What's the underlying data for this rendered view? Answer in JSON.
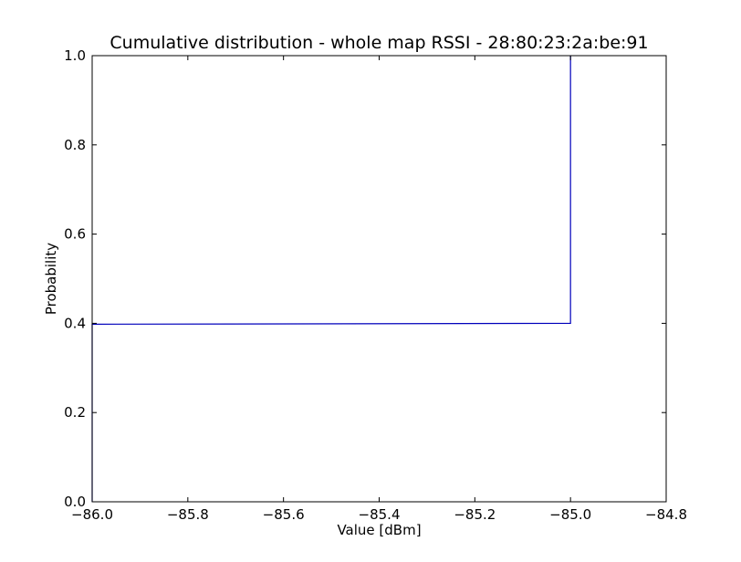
{
  "chart_data": {
    "type": "line",
    "title": "Cumulative distribution - whole map RSSI - 28:80:23:2a:be:91",
    "xlabel": "Value [dBm]",
    "ylabel": "Probability",
    "xlim": [
      -86.0,
      -84.8
    ],
    "ylim": [
      0.0,
      1.0
    ],
    "xticks": [
      -86.0,
      -85.8,
      -85.6,
      -85.4,
      -85.2,
      -85.0,
      -84.8
    ],
    "xtick_labels": [
      "−86.0",
      "−85.8",
      "−85.6",
      "−85.4",
      "−85.2",
      "−85.0",
      "−84.8"
    ],
    "yticks": [
      0.0,
      0.2,
      0.4,
      0.6,
      0.8,
      1.0
    ],
    "ytick_labels": [
      "0.0",
      "0.2",
      "0.4",
      "0.6",
      "0.8",
      "1.0"
    ],
    "grid": false,
    "series": [
      {
        "color": "#0000bb",
        "x": [
          -86.0,
          -86.0,
          -85.0,
          -85.0
        ],
        "y": [
          0.0,
          0.398,
          0.4,
          1.0
        ]
      }
    ]
  }
}
